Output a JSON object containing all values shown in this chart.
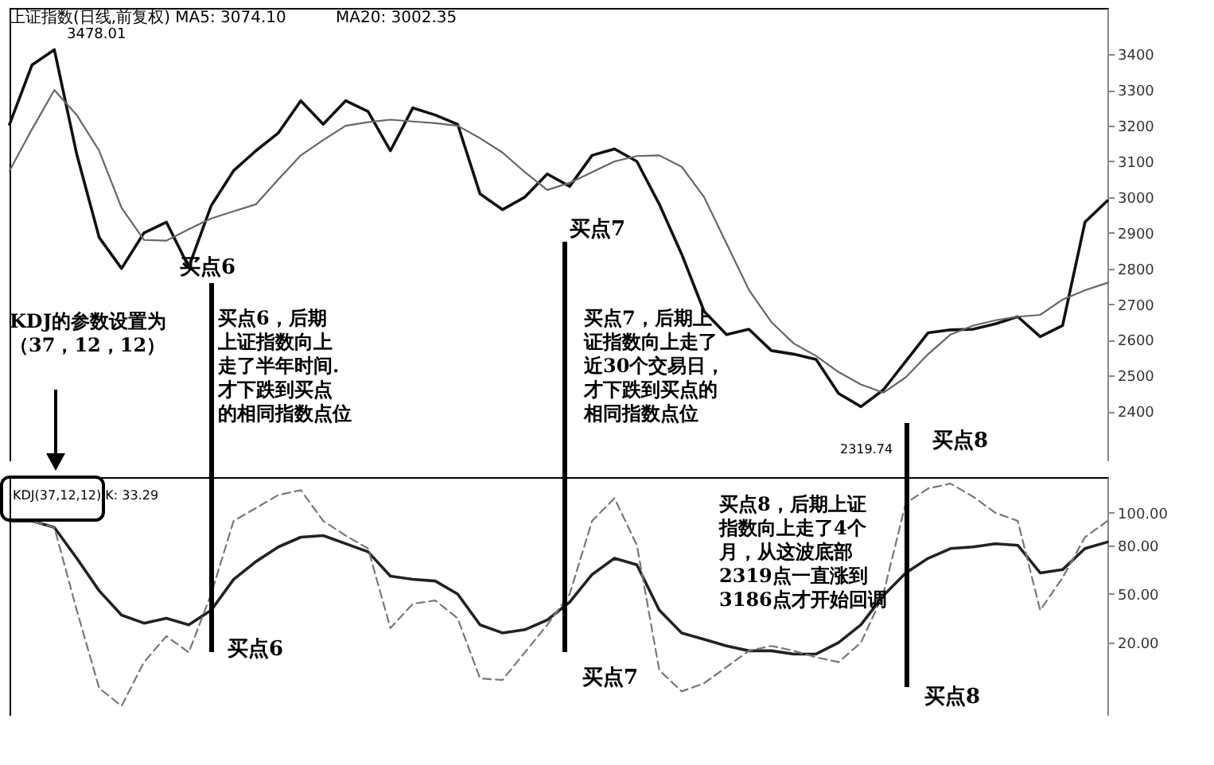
{
  "chart_data": [
    {
      "type": "line",
      "categories": [
        null,
        null,
        null,
        null,
        null,
        null,
        null,
        null,
        null,
        null,
        null,
        null,
        null,
        null,
        null,
        null,
        null,
        null,
        null,
        null,
        null,
        null,
        null,
        null,
        null,
        null,
        null,
        null,
        null,
        null,
        null,
        null,
        null,
        null,
        null,
        null,
        null,
        null,
        null,
        null,
        null,
        null,
        null,
        null,
        null,
        null,
        null,
        null,
        null,
        null
      ],
      "series": [
        {
          "color": "#111111",
          "values": [
            3204,
            3370,
            3413,
            3120,
            2887,
            2800,
            2900,
            2930,
            2804,
            2976,
            3074,
            3130,
            3180,
            3270,
            3204,
            3270,
            3240,
            3130,
            3250,
            3230,
            3204,
            3009,
            2965,
            3000,
            3065,
            3030,
            3117,
            3135,
            3100,
            2980,
            2840,
            2680,
            2615,
            2630,
            2570,
            2560,
            2545,
            2450,
            2413,
            2460,
            2540,
            2620,
            2628,
            2630,
            2645,
            2665,
            2609,
            2640,
            2930,
            2990
          ]
        },
        {
          "color": "#666666",
          "values": [
            3074,
            3190,
            3300,
            3230,
            3130,
            2970,
            2880,
            2878,
            2910,
            2940,
            2960,
            2980,
            3050,
            3117,
            3160,
            3200,
            3210,
            3217,
            3212,
            3207,
            3200,
            3165,
            3125,
            3070,
            3020,
            3040,
            3070,
            3100,
            3115,
            3117,
            3085,
            3000,
            2870,
            2740,
            2650,
            2590,
            2555,
            2510,
            2475,
            2452,
            2495,
            2560,
            2615,
            2640,
            2655,
            2665,
            2670,
            2713,
            2739,
            2760
          ]
        }
      ],
      "ylim": [
        2260,
        3530
      ],
      "yticks": [
        2400,
        2500,
        2600,
        2700,
        2800,
        2900,
        3000,
        3100,
        3200,
        3300,
        3400
      ],
      "tick_labels": "y",
      "annotations": [
        "上证指数(日线,前复权) MA5: 3074.10",
        "MA20: 3002.35",
        "3478.01",
        "买点6",
        "买点7",
        "买点8",
        "2319.74",
        "KDJ的参数设置为（37，12，12）",
        "买点6，后期上证指数向上走了半年时间.才下跌到买点的相同指数点位",
        "买点7，后期上证指数向上走了近30个交易日，才下跌到买点的相同指数点位"
      ]
    },
    {
      "type": "line",
      "categories": [
        null,
        null,
        null,
        null,
        null,
        null,
        null,
        null,
        null,
        null,
        null,
        null,
        null,
        null,
        null,
        null,
        null,
        null,
        null,
        null,
        null,
        null,
        null,
        null,
        null,
        null,
        null,
        null,
        null,
        null,
        null,
        null,
        null,
        null,
        null,
        null,
        null,
        null,
        null,
        null,
        null,
        null,
        null,
        null,
        null,
        null,
        null,
        null,
        null,
        null
      ],
      "series": [
        {
          "color": "#222222",
          "values": [
            95,
            95,
            91,
            72,
            52,
            37,
            32,
            35,
            31,
            40,
            59,
            70,
            79,
            85,
            86,
            81,
            76,
            61,
            59,
            58,
            50,
            31,
            26,
            28,
            34,
            45,
            62,
            72,
            68,
            40,
            26,
            22,
            18,
            15,
            15,
            13,
            13,
            20,
            31,
            49,
            63,
            72,
            78,
            79,
            81,
            80,
            63,
            65,
            78,
            82
          ]
        },
        {
          "color": "#777777",
          "line_style": "dashed",
          "values": [
            95,
            95,
            91,
            40,
            -8,
            -19,
            8,
            24,
            14,
            50,
            95,
            103,
            111,
            114,
            95,
            86,
            78,
            29,
            44,
            46,
            35,
            -2,
            -3,
            14,
            31,
            50,
            95,
            109,
            80,
            3,
            -10,
            -5,
            5,
            15,
            18,
            15,
            11,
            8,
            20,
            50,
            106,
            115,
            118,
            110,
            100,
            95,
            40,
            60,
            85,
            95
          ]
        }
      ],
      "ylim": [
        -25,
        122
      ],
      "yticks": [
        {
          "value": 20,
          "label": "20.00"
        },
        {
          "value": 50,
          "label": "50.00"
        },
        {
          "value": 80,
          "label": "80.00"
        },
        {
          "value": 100,
          "label": "100.00"
        }
      ],
      "tick_labels": "y",
      "annotations": [
        "KDJ(37,12,12) K: 33.29",
        "买点6",
        "买点7",
        "买点8",
        "买点8，后期上证指数向上走了4个月，从这波底部2319点一直涨到3186点才开始回调"
      ]
    }
  ]
}
